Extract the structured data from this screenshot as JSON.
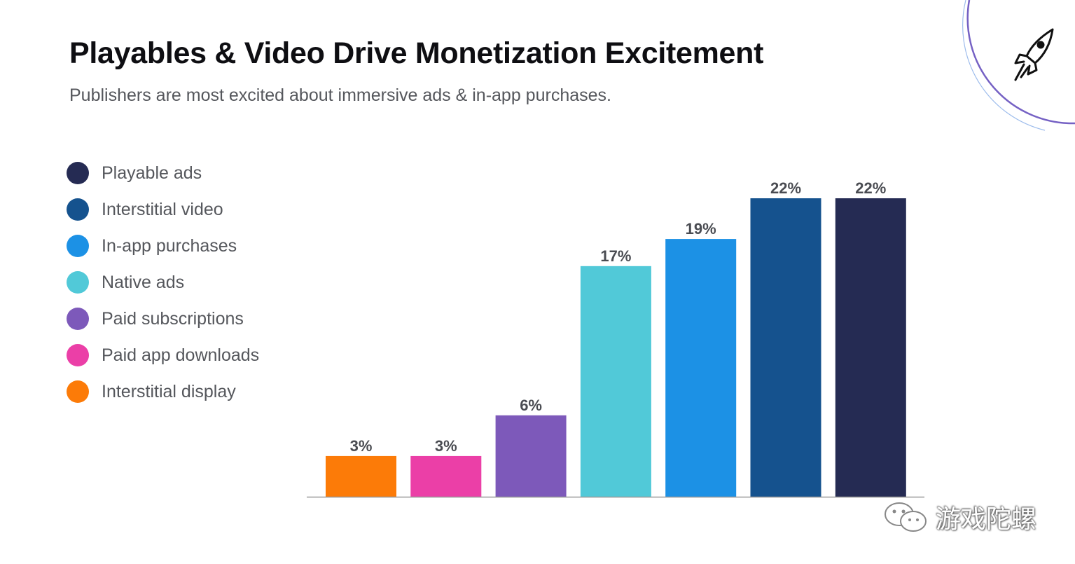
{
  "title": "Playables & Video Drive Monetization Excitement",
  "subtitle": "Publishers are most excited about immersive ads & in-app purchases.",
  "legend": [
    {
      "label": "Playable ads",
      "color": "#252B53"
    },
    {
      "label": "Interstitial video",
      "color": "#15528E"
    },
    {
      "label": "In-app purchases",
      "color": "#1C91E5"
    },
    {
      "label": "Native ads",
      "color": "#51C9D8"
    },
    {
      "label": "Paid subscriptions",
      "color": "#7D59BA"
    },
    {
      "label": "Paid app downloads",
      "color": "#EB3FA7"
    },
    {
      "label": "Interstitial display",
      "color": "#FC7B08"
    }
  ],
  "watermark": "游戏陀螺",
  "chart_data": {
    "type": "bar",
    "title": "Playables & Video Drive Monetization Excitement",
    "xlabel": "",
    "ylabel": "",
    "ylim": [
      0,
      22
    ],
    "grid": false,
    "legend_position": "left",
    "categories": [
      "Interstitial display",
      "Paid app downloads",
      "Paid subscriptions",
      "Native ads",
      "In-app purchases",
      "Interstitial video",
      "Playable ads"
    ],
    "values": [
      3,
      3,
      6,
      17,
      19,
      22,
      22
    ],
    "data_labels": [
      "3%",
      "3%",
      "6%",
      "17%",
      "19%",
      "22%",
      "22%"
    ],
    "colors": [
      "#FC7B08",
      "#EB3FA7",
      "#7D59BA",
      "#51C9D8",
      "#1C91E5",
      "#15528E",
      "#252B53"
    ]
  }
}
